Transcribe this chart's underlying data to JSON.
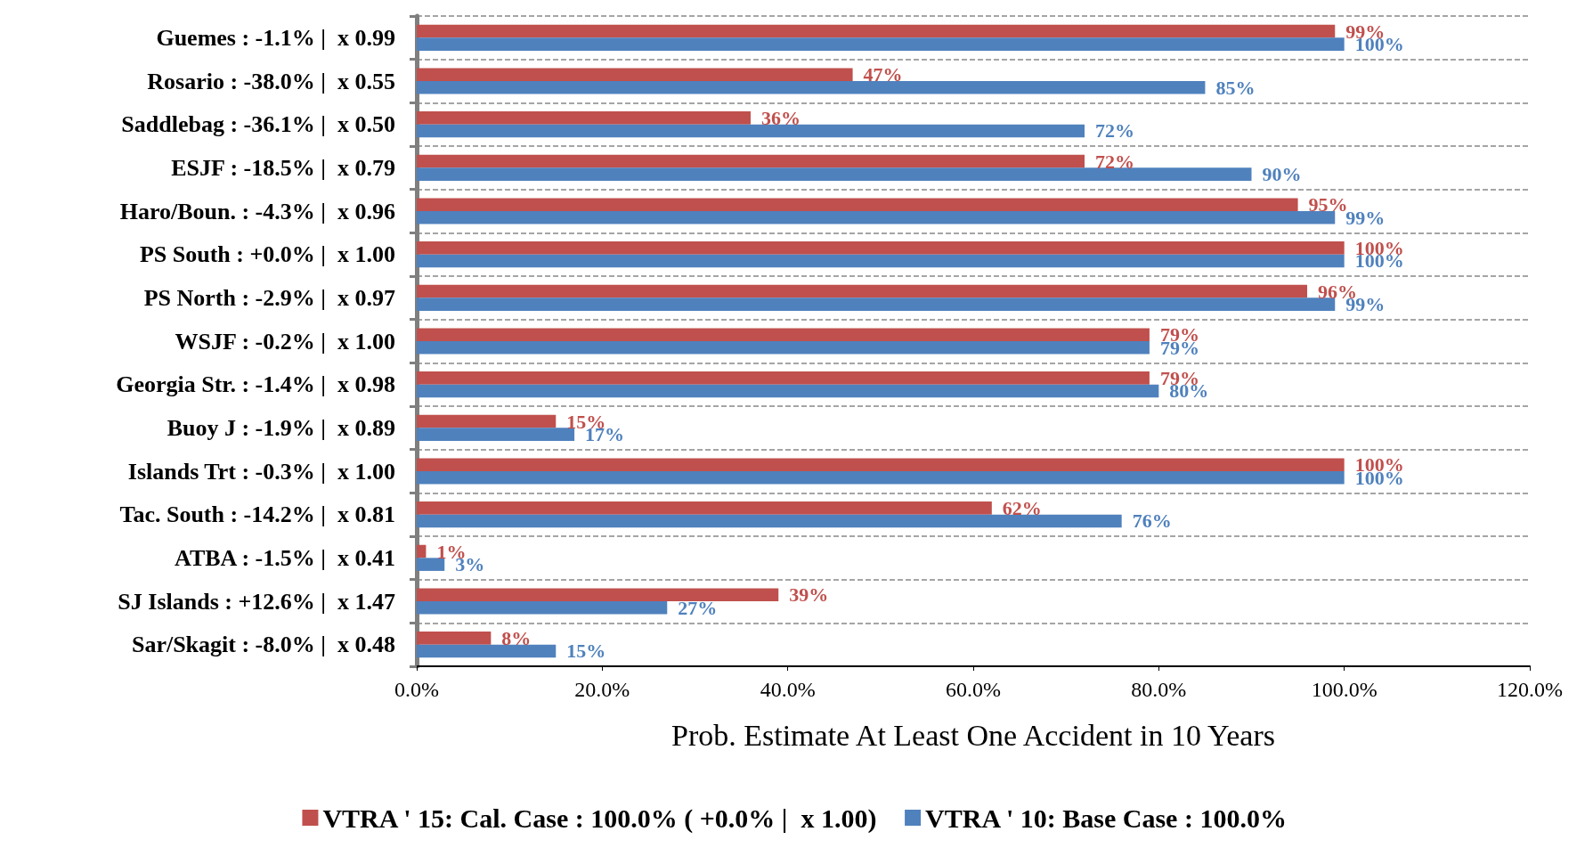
{
  "chart_data": {
    "type": "bar",
    "orientation": "horizontal",
    "xlabel": "Prob. Estimate At Least One Accident in 10 Years",
    "categories": [
      "Guemes : -1.1% |  x 0.99",
      "Rosario : -38.0% |  x 0.55",
      "Saddlebag : -36.1% |  x 0.50",
      "ESJF : -18.5% |  x 0.79",
      "Haro/Boun. : -4.3% |  x 0.96",
      "PS South : +0.0% |  x 1.00",
      "PS North : -2.9% |  x 0.97",
      "WSJF : -0.2% |  x 1.00",
      "Georgia Str. : -1.4% |  x 0.98",
      "Buoy J : -1.9% |  x 0.89",
      "Islands Trt : -0.3% |  x 1.00",
      "Tac. South : -14.2% |  x 0.81",
      "ATBA : -1.5% |  x 0.41",
      "SJ Islands : +12.6% |  x 1.47",
      "Sar/Skagit : -8.0% |  x 0.48"
    ],
    "series": [
      {
        "name": "VTRA ' 15: Cal. Case : 100.0% ( +0.0% |  x 1.00)",
        "color": "#c0504d",
        "values": [
          99,
          47,
          36,
          72,
          95,
          100,
          96,
          79,
          79,
          15,
          100,
          62,
          1,
          39,
          8
        ],
        "value_labels": [
          "99%",
          "47%",
          "36%",
          "72%",
          "95%",
          "100%",
          "96%",
          "79%",
          "79%",
          "15%",
          "100%",
          "62%",
          "1%",
          "39%",
          "8%"
        ]
      },
      {
        "name": "VTRA ' 10: Base Case : 100.0%",
        "color": "#4f81bd",
        "values": [
          100,
          85,
          72,
          90,
          99,
          100,
          99,
          79,
          80,
          17,
          100,
          76,
          3,
          27,
          15
        ],
        "value_labels": [
          "100%",
          "85%",
          "72%",
          "90%",
          "99%",
          "100%",
          "99%",
          "79%",
          "80%",
          "17%",
          "100%",
          "76%",
          "3%",
          "27%",
          "15%"
        ]
      }
    ],
    "xlim": [
      0,
      120
    ],
    "xticks": [
      {
        "value": 0,
        "label": "0.0%"
      },
      {
        "value": 20,
        "label": "20.0%"
      },
      {
        "value": 40,
        "label": "40.0%"
      },
      {
        "value": 60,
        "label": "60.0%"
      },
      {
        "value": 80,
        "label": "80.0%"
      },
      {
        "value": 100,
        "label": "100.0%"
      },
      {
        "value": 120,
        "label": "120.0%"
      }
    ],
    "grid": "y",
    "legend": "bottom"
  }
}
